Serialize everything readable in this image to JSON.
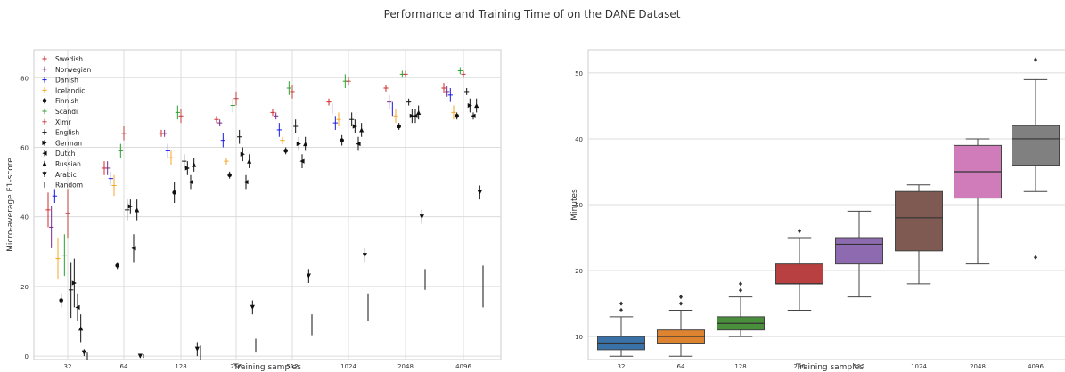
{
  "figure": {
    "title": "Performance and Training Time of on the DANE Dataset"
  },
  "chart_data": [
    {
      "type": "scatter",
      "xlabel": "Training samples",
      "ylabel": "Micro-average F1-score",
      "categories": [
        "32",
        "64",
        "128",
        "256",
        "512",
        "1024",
        "2048",
        "4096"
      ],
      "yticks": [
        0,
        20,
        40,
        60,
        80
      ],
      "ylim": [
        -1,
        88
      ],
      "grid": true,
      "legend_position": "upper-left",
      "series": [
        {
          "name": "Swedish",
          "marker": "+",
          "color": "#d62728",
          "mean": [
            42,
            54,
            64,
            68,
            70,
            73,
            77,
            77
          ],
          "err": [
            5,
            2,
            1,
            1,
            1,
            1,
            1,
            1.5
          ]
        },
        {
          "name": "Norwegian",
          "marker": "+",
          "color": "#7b2a8a",
          "mean": [
            37,
            54,
            64,
            67,
            69,
            71,
            73,
            76
          ],
          "err": [
            6,
            2,
            1,
            1,
            1,
            1.5,
            2,
            1.5
          ]
        },
        {
          "name": "Danish",
          "marker": "+",
          "color": "#1a1ae6",
          "mean": [
            46,
            51,
            59,
            62,
            65,
            67,
            71,
            75
          ],
          "err": [
            2,
            2,
            2,
            2,
            2,
            2,
            2,
            2
          ]
        },
        {
          "name": "Icelandic",
          "marker": "+",
          "color": "#f5a623",
          "mean": [
            28,
            49,
            57,
            56,
            62,
            68,
            69,
            70
          ],
          "err": [
            6,
            3,
            2,
            1,
            1,
            2,
            2,
            2
          ]
        },
        {
          "name": "Finnish",
          "marker": "*",
          "color": "#111111",
          "mean": [
            16,
            26,
            47,
            52,
            59,
            62,
            66,
            69
          ],
          "err": [
            2,
            1,
            3,
            1,
            1,
            1.5,
            1,
            1
          ]
        },
        {
          "name": "Scandi",
          "marker": "+",
          "color": "#2ca02c",
          "mean": [
            29,
            59,
            70,
            72,
            77,
            79,
            81,
            82
          ],
          "err": [
            6,
            2,
            2,
            2,
            2,
            2,
            1,
            1
          ]
        },
        {
          "name": "Xlmr",
          "marker": "+",
          "color": "#c23b3b",
          "mean": [
            41,
            64,
            69,
            74,
            76,
            79,
            81,
            81
          ],
          "err": [
            7,
            2,
            2,
            2,
            2,
            1,
            1,
            1
          ]
        },
        {
          "name": "English",
          "marker": "+",
          "color": "#111111",
          "mean": [
            19,
            42,
            56,
            63,
            66,
            68,
            73,
            76
          ],
          "err": [
            8,
            3,
            2,
            2,
            2,
            2,
            1,
            1
          ]
        },
        {
          "name": "German",
          "marker": ">",
          "color": "#111111",
          "mean": [
            21,
            43,
            54,
            58,
            61,
            66,
            69,
            72
          ],
          "err": [
            7,
            2,
            2,
            2,
            2,
            2,
            2,
            2
          ]
        },
        {
          "name": "Dutch",
          "marker": "<",
          "color": "#111111",
          "mean": [
            14,
            31,
            50,
            50,
            56,
            61,
            69,
            69
          ],
          "err": [
            4,
            4,
            2,
            2,
            2,
            2,
            2,
            1
          ]
        },
        {
          "name": "Russian",
          "marker": "^",
          "color": "#111111",
          "mean": [
            8,
            42,
            55,
            56,
            61,
            65,
            70,
            72
          ],
          "err": [
            4,
            3,
            2,
            2,
            2,
            2,
            2,
            2
          ]
        },
        {
          "name": "Arabic",
          "marker": "v",
          "color": "#111111",
          "mean": [
            1,
            0,
            2,
            14,
            23,
            29,
            40,
            47
          ],
          "err": [
            1,
            0.5,
            2,
            2,
            2,
            2,
            2,
            2
          ]
        },
        {
          "name": "Random",
          "marker": "|",
          "color": "#111111",
          "mean": [
            0,
            0,
            1,
            3,
            9,
            14,
            22,
            20
          ],
          "err": [
            1,
            0.5,
            2,
            2,
            3,
            4,
            3,
            6
          ]
        }
      ]
    },
    {
      "type": "box",
      "xlabel": "Training samples",
      "ylabel": "Minutes",
      "categories": [
        "32",
        "64",
        "128",
        "256",
        "512",
        "1024",
        "2048",
        "4096"
      ],
      "yticks": [
        10,
        20,
        30,
        40,
        50
      ],
      "ylim": [
        6.5,
        53.5
      ],
      "grid": true,
      "boxes": [
        {
          "label": "32",
          "color": "#3a72a8",
          "whislo": 7,
          "q1": 8,
          "med": 9,
          "q3": 10,
          "whishi": 13,
          "fliers": [
            14,
            15
          ]
        },
        {
          "label": "64",
          "color": "#de8430",
          "whislo": 7,
          "q1": 9,
          "med": 10,
          "q3": 11,
          "whishi": 14,
          "fliers": [
            15,
            16
          ]
        },
        {
          "label": "128",
          "color": "#4a8f3c",
          "whislo": 10,
          "q1": 11,
          "med": 12,
          "q3": 13,
          "whishi": 16,
          "fliers": [
            17,
            18
          ]
        },
        {
          "label": "256",
          "color": "#b84040",
          "whislo": 14,
          "q1": 18,
          "med": 18,
          "q3": 21,
          "whishi": 25,
          "fliers": [
            26
          ]
        },
        {
          "label": "512",
          "color": "#8e6bb0",
          "whislo": 16,
          "q1": 21,
          "med": 24,
          "q3": 25,
          "whishi": 29,
          "fliers": []
        },
        {
          "label": "1024",
          "color": "#7e5a52",
          "whislo": 18,
          "q1": 23,
          "med": 28,
          "q3": 32,
          "whishi": 33,
          "fliers": []
        },
        {
          "label": "2048",
          "color": "#d07cbb",
          "whislo": 21,
          "q1": 31,
          "med": 35,
          "q3": 39,
          "whishi": 40,
          "fliers": []
        },
        {
          "label": "4096",
          "color": "#808080",
          "whislo": 32,
          "q1": 36,
          "med": 40,
          "q3": 42,
          "whishi": 49,
          "fliers": [
            22,
            52
          ]
        }
      ]
    }
  ]
}
